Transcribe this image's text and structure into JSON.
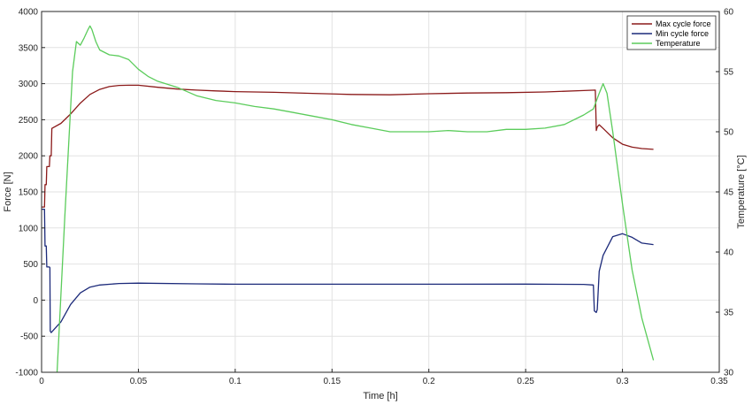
{
  "chart_data": {
    "type": "line",
    "title": "",
    "xlabel": "Time [h]",
    "ylabel_left": "Force [N]",
    "ylabel_right": "Temperature [°C]",
    "xlim": [
      0,
      0.35
    ],
    "ylim_left": [
      -1000,
      4000
    ],
    "ylim_right": [
      30,
      60
    ],
    "x_ticks": [
      0,
      0.05,
      0.1,
      0.15,
      0.2,
      0.25,
      0.3,
      0.35
    ],
    "x_tick_labels": [
      "0",
      "0.05",
      "0.1",
      "0.15",
      "0.2",
      "0.25",
      "0.3",
      "0.35"
    ],
    "y_left_ticks": [
      -1000,
      -500,
      0,
      500,
      1000,
      1500,
      2000,
      2500,
      3000,
      3500,
      4000
    ],
    "y_left_tick_labels": [
      "-1000",
      "-500",
      "0",
      "500",
      "1000",
      "1500",
      "2000",
      "2500",
      "3000",
      "3500",
      "4000"
    ],
    "y_right_ticks": [
      30,
      35,
      40,
      45,
      50,
      55,
      60
    ],
    "y_right_tick_labels": [
      "30",
      "35",
      "40",
      "45",
      "50",
      "55",
      "60"
    ],
    "grid": true,
    "legend_position": "top-right",
    "series": [
      {
        "name": "Max cycle force",
        "axis": "left",
        "color": "#8b1a1a",
        "x": [
          0,
          0.0015,
          0.0018,
          0.0024,
          0.0027,
          0.004,
          0.0043,
          0.005,
          0.0053,
          0.01,
          0.015,
          0.02,
          0.025,
          0.03,
          0.035,
          0.04,
          0.045,
          0.05,
          0.06,
          0.07,
          0.08,
          0.09,
          0.1,
          0.12,
          0.14,
          0.16,
          0.18,
          0.2,
          0.22,
          0.24,
          0.26,
          0.28,
          0.286,
          0.2865,
          0.287,
          0.288,
          0.29,
          0.295,
          0.3,
          0.305,
          0.31,
          0.316
        ],
        "y": [
          1290,
          1290,
          1600,
          1600,
          1850,
          1850,
          2000,
          2000,
          2380,
          2450,
          2580,
          2730,
          2850,
          2920,
          2960,
          2975,
          2978,
          2978,
          2950,
          2925,
          2910,
          2900,
          2890,
          2880,
          2865,
          2850,
          2845,
          2860,
          2870,
          2875,
          2885,
          2905,
          2910,
          2350,
          2400,
          2430,
          2380,
          2250,
          2160,
          2120,
          2100,
          2090
        ]
      },
      {
        "name": "Min cycle force",
        "axis": "left",
        "color": "#1c2a7a",
        "x": [
          0,
          0.0015,
          0.0018,
          0.0024,
          0.0027,
          0.004,
          0.0043,
          0.0045,
          0.005,
          0.01,
          0.015,
          0.02,
          0.025,
          0.03,
          0.04,
          0.05,
          0.08,
          0.1,
          0.15,
          0.2,
          0.25,
          0.28,
          0.285,
          0.2855,
          0.2865,
          0.287,
          0.288,
          0.29,
          0.295,
          0.3,
          0.305,
          0.31,
          0.316
        ],
        "y": [
          1260,
          1260,
          750,
          750,
          460,
          460,
          450,
          -430,
          -450,
          -300,
          -60,
          100,
          180,
          210,
          230,
          235,
          225,
          220,
          220,
          220,
          222,
          218,
          210,
          -150,
          -170,
          -130,
          400,
          620,
          880,
          920,
          870,
          790,
          770
        ]
      },
      {
        "name": "Temperature",
        "axis": "right",
        "color": "#5bcc5b",
        "x": [
          0.008,
          0.012,
          0.016,
          0.018,
          0.02,
          0.022,
          0.024,
          0.025,
          0.026,
          0.028,
          0.03,
          0.035,
          0.04,
          0.045,
          0.05,
          0.055,
          0.06,
          0.07,
          0.08,
          0.09,
          0.1,
          0.11,
          0.12,
          0.13,
          0.14,
          0.15,
          0.16,
          0.17,
          0.18,
          0.19,
          0.2,
          0.21,
          0.22,
          0.23,
          0.24,
          0.25,
          0.26,
          0.27,
          0.28,
          0.285,
          0.288,
          0.29,
          0.292,
          0.295,
          0.3,
          0.305,
          0.31,
          0.316
        ],
        "y": [
          30,
          43,
          55,
          57.5,
          57.2,
          57.8,
          58.5,
          58.8,
          58.5,
          57.5,
          56.8,
          56.4,
          56.3,
          56.0,
          55.2,
          54.6,
          54.2,
          53.7,
          53.0,
          52.6,
          52.4,
          52.1,
          51.9,
          51.6,
          51.3,
          51.0,
          50.6,
          50.3,
          50.0,
          50.0,
          50.0,
          50.1,
          50.0,
          50.0,
          50.2,
          50.2,
          50.3,
          50.6,
          51.4,
          51.9,
          53.2,
          54.0,
          53.2,
          50.0,
          44.0,
          38.5,
          34.5,
          31.0
        ]
      }
    ]
  }
}
